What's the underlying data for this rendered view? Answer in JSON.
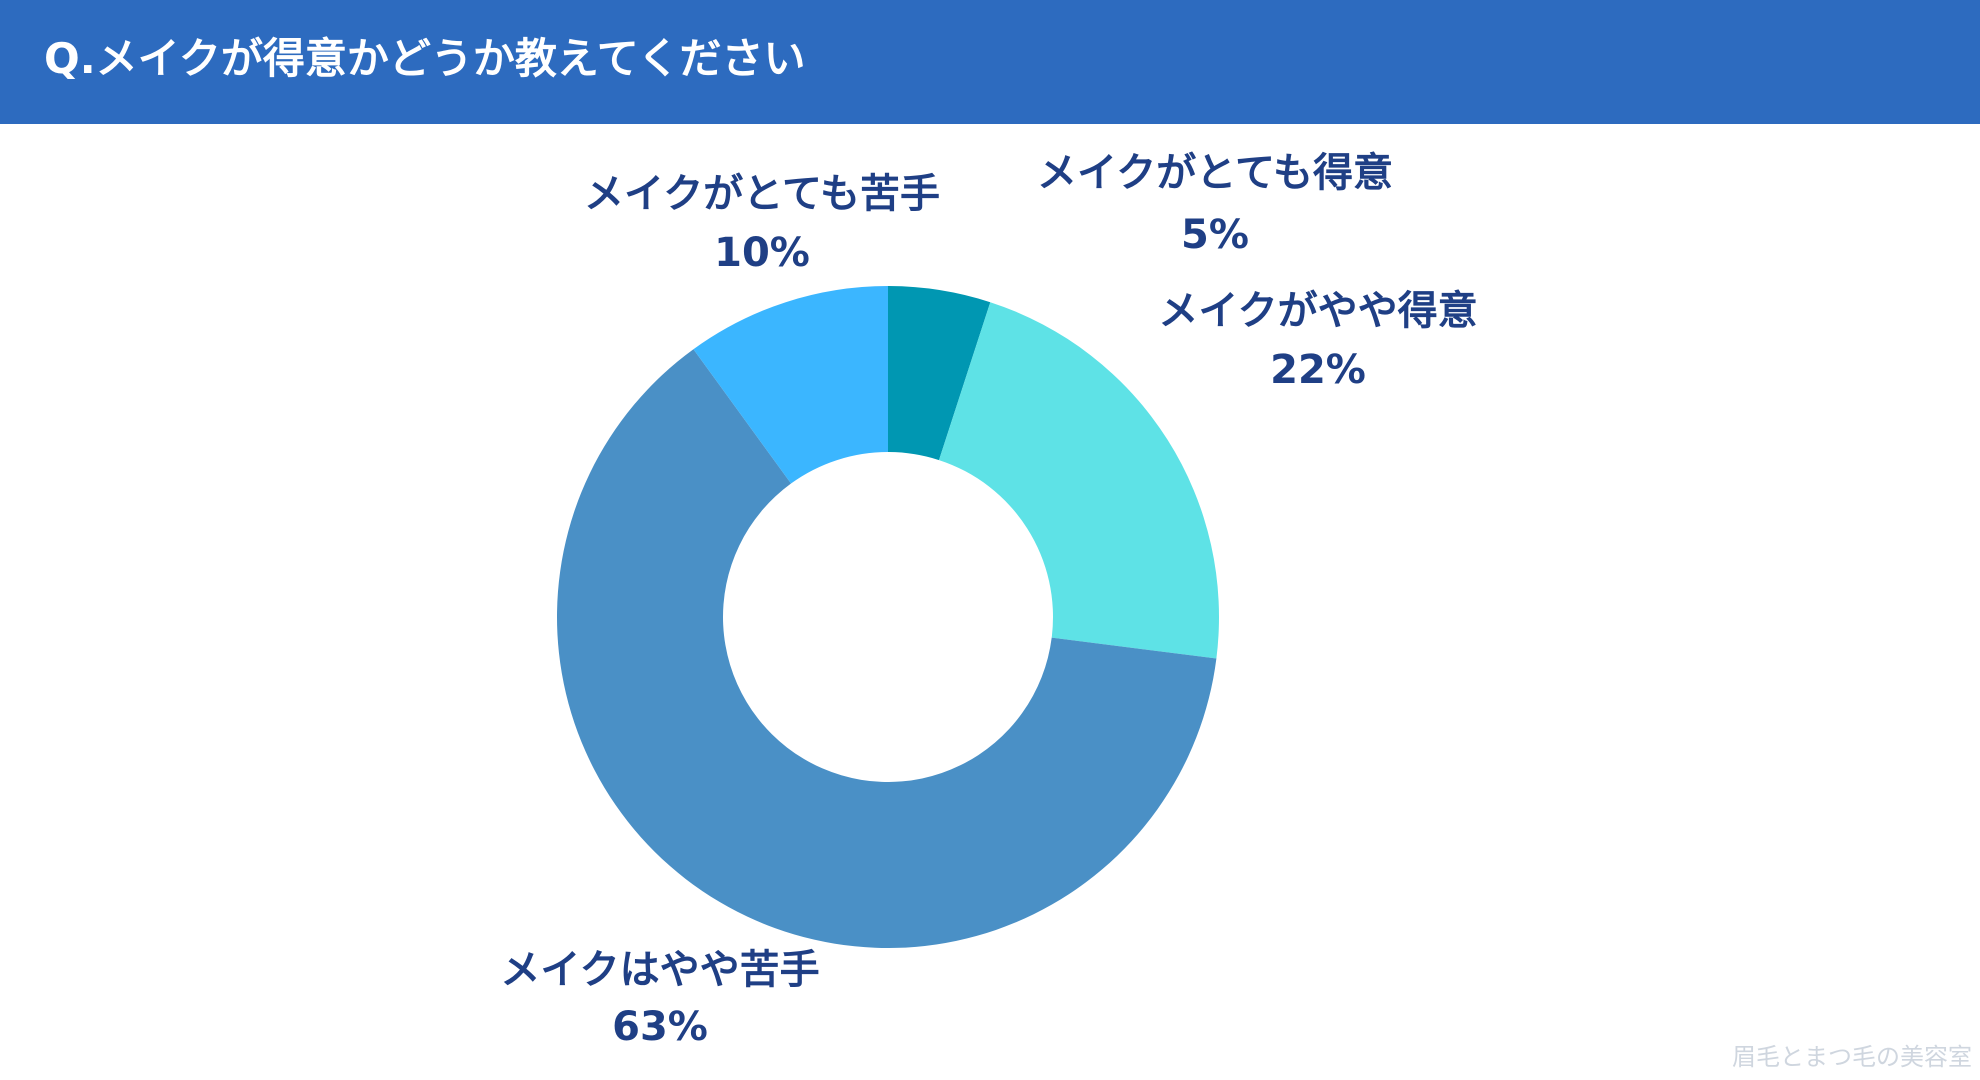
{
  "header": {
    "title": "Q.メイクが得意かどうか教えてください"
  },
  "chart_data": {
    "type": "pie",
    "donut": true,
    "title": "Q.メイクが得意かどうか教えてください",
    "unit": "%",
    "start_angle_deg": 0,
    "direction": "clockwise",
    "slices": [
      {
        "name": "メイクがとても得意",
        "value": 5,
        "label": "5%",
        "color": "#0097b2"
      },
      {
        "name": "メイクがやや得意",
        "value": 22,
        "label": "22%",
        "color": "#5ee2e6"
      },
      {
        "name": "メイクはやや苦手",
        "value": 63,
        "label": "63%",
        "color": "#4a90c6"
      },
      {
        "name": "メイクがとても苦手",
        "value": 10,
        "label": "10%",
        "color": "#3bb6ff"
      }
    ],
    "colors": {
      "label_text": "#1f3f85",
      "header_bg": "#2d6bbf",
      "header_text": "#ffffff",
      "hole": "#ffffff"
    }
  },
  "watermark": {
    "text": "眉毛とまつ毛の美容室"
  }
}
